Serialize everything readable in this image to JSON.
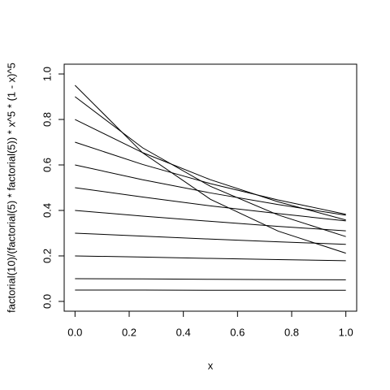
{
  "chart_data": {
    "type": "line",
    "xlabel": "x",
    "ylabel": "factorial(10)/(factorial(5) * factorial(5)) * x^5 * (1 - x)^5",
    "x": [
      0,
      0.25,
      0.5,
      0.75,
      1
    ],
    "series": [
      {
        "color": "#000000",
        "values": [
          0.95,
          0.653,
          0.449,
          0.309,
          0.212
        ]
      },
      {
        "color": "#000000",
        "values": [
          0.9,
          0.675,
          0.506,
          0.38,
          0.285
        ]
      },
      {
        "color": "#000000",
        "values": [
          0.8,
          0.654,
          0.535,
          0.438,
          0.358
        ]
      },
      {
        "color": "#000000",
        "values": [
          0.7,
          0.602,
          0.518,
          0.446,
          0.383
        ]
      },
      {
        "color": "#000000",
        "values": [
          0.6,
          0.535,
          0.477,
          0.426,
          0.379
        ]
      },
      {
        "color": "#000000",
        "values": [
          0.5,
          0.459,
          0.42,
          0.386,
          0.354
        ]
      },
      {
        "color": "#000000",
        "values": [
          0.4,
          0.375,
          0.352,
          0.33,
          0.31
        ]
      },
      {
        "color": "#000000",
        "values": [
          0.3,
          0.287,
          0.274,
          0.262,
          0.251
        ]
      },
      {
        "color": "#000000",
        "values": [
          0.2,
          0.195,
          0.189,
          0.184,
          0.179
        ]
      },
      {
        "color": "#000000",
        "values": [
          0.1,
          0.099,
          0.097,
          0.096,
          0.095
        ]
      },
      {
        "color": "#000000",
        "values": [
          0.05,
          0.05,
          0.049,
          0.049,
          0.049
        ]
      }
    ],
    "xlim": [
      -0.04,
      1.04
    ],
    "ylim": [
      -0.043,
      1.043
    ],
    "xticks": [
      {
        "value": 0,
        "label": "0.0"
      },
      {
        "value": 0.2,
        "label": "0.2"
      },
      {
        "value": 0.4,
        "label": "0.4"
      },
      {
        "value": 0.6,
        "label": "0.6"
      },
      {
        "value": 0.8,
        "label": "0.8"
      },
      {
        "value": 1,
        "label": "1.0"
      }
    ],
    "yticks": [
      {
        "value": 0,
        "label": "0.0"
      },
      {
        "value": 0.2,
        "label": "0.2"
      },
      {
        "value": 0.4,
        "label": "0.4"
      },
      {
        "value": 0.6,
        "label": "0.6"
      },
      {
        "value": 0.8,
        "label": "0.8"
      },
      {
        "value": 1,
        "label": "1.0"
      }
    ],
    "grid": false
  }
}
